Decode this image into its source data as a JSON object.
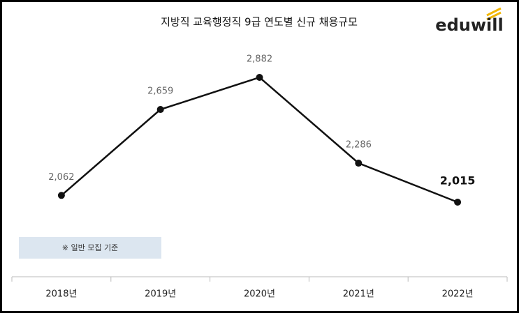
{
  "chart_data": {
    "type": "line",
    "title": "지방직 교육행정직 9급 연도별 신규 채용규모",
    "logo": "eduwill",
    "note": "※ 일반 모집 기준",
    "categories": [
      "2018년",
      "2019년",
      "2020년",
      "2021년",
      "2022년"
    ],
    "values": [
      2062,
      2659,
      2882,
      2286,
      2015
    ],
    "value_labels": [
      "2,062",
      "2,659",
      "2,882",
      "2,286",
      "2,015"
    ],
    "color": "#111111"
  }
}
